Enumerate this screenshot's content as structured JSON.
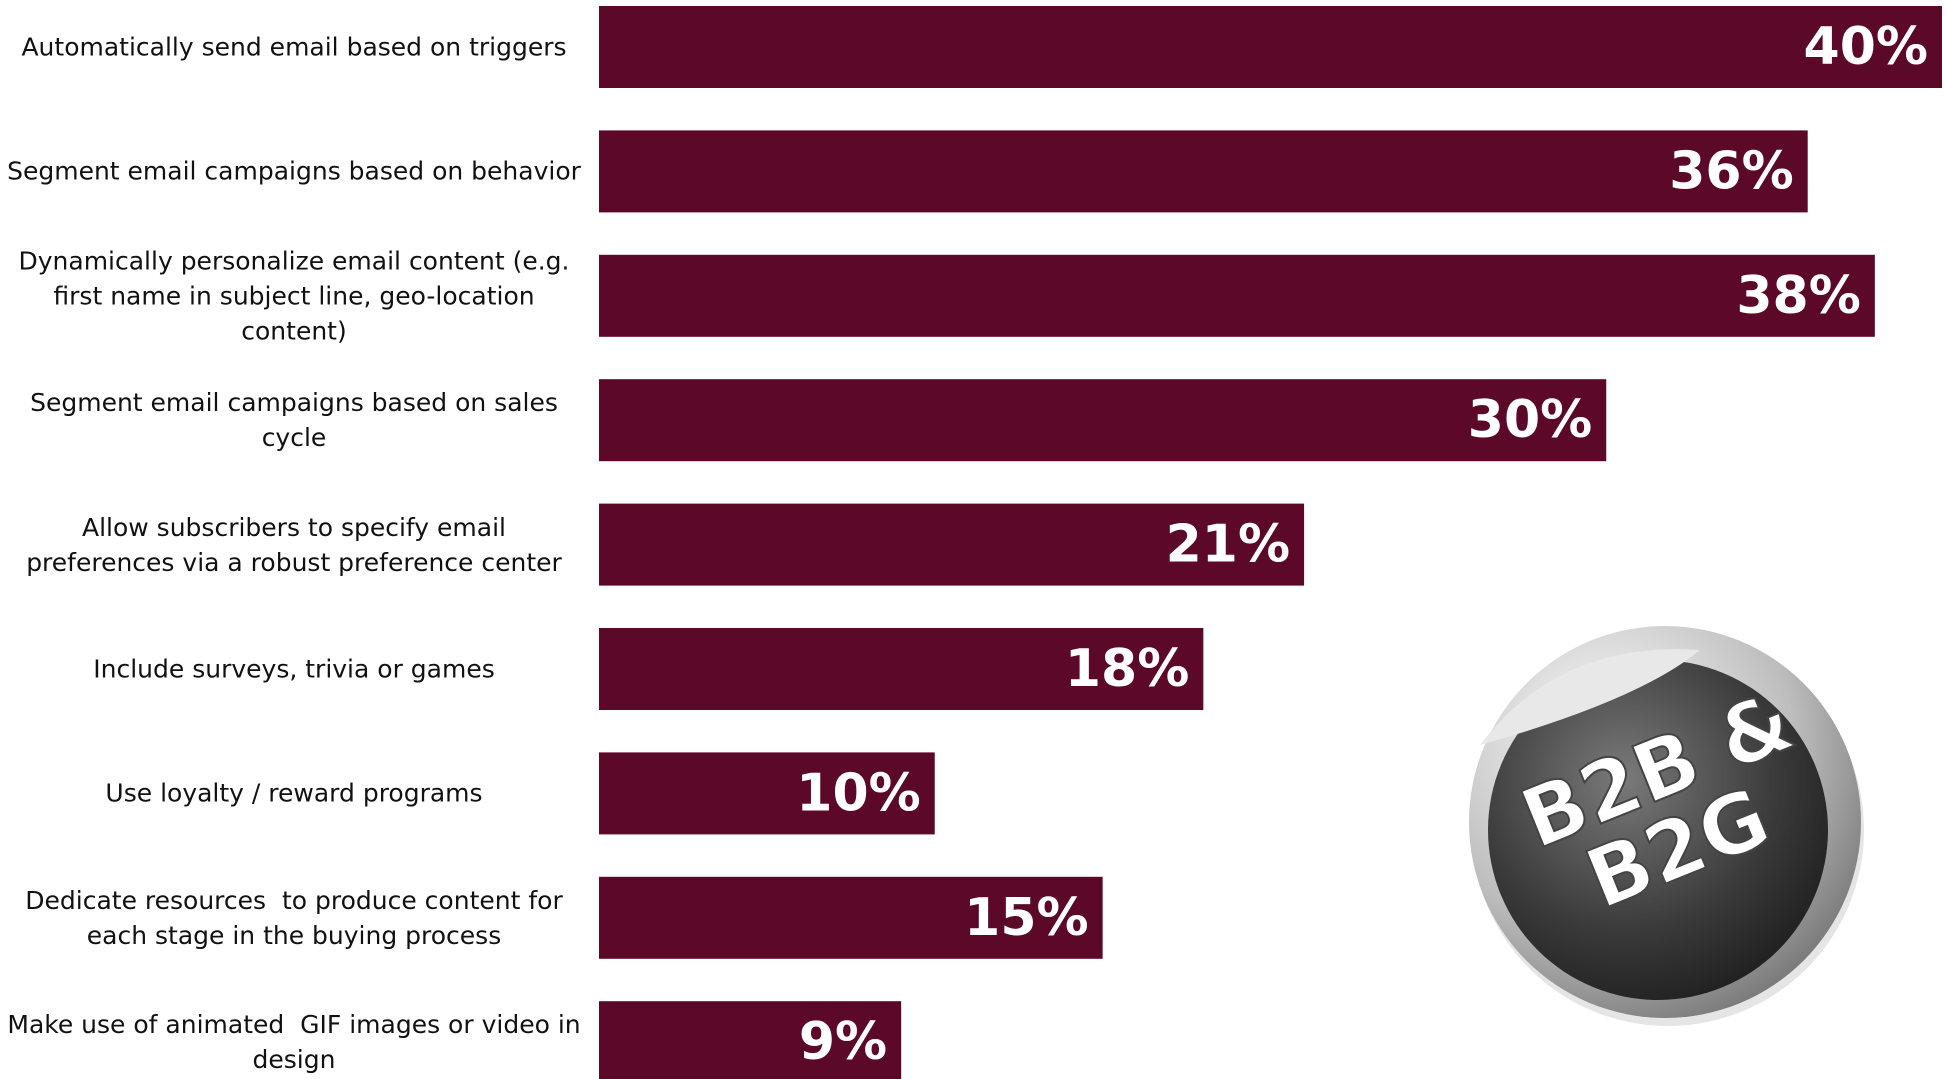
{
  "chart_data": {
    "type": "barh",
    "categories": [
      "Automatically send email based on triggers",
      "Segment email campaigns based on behavior",
      "Dynamically personalize email content (e.g.  first name in subject line, geo-location content)",
      "Segment email campaigns based on sales cycle",
      "Allow subscribers to specify email preferences via a robust preference center",
      "Include surveys, trivia or games",
      "Use loyalty / reward programs",
      "Dedicate resources  to produce content for each stage in the buying process",
      "Make use of animated  GIF images or video in design"
    ],
    "values": [
      40,
      36,
      38,
      30,
      21,
      18,
      10,
      15,
      9
    ],
    "value_labels": [
      "40%",
      "36%",
      "38%",
      "30%",
      "21%",
      "18%",
      "10%",
      "15%",
      "9%"
    ],
    "color": "#5c0828",
    "xlim": [
      0,
      40
    ]
  },
  "badge": {
    "lines": [
      "B2B &",
      "B2G"
    ]
  }
}
